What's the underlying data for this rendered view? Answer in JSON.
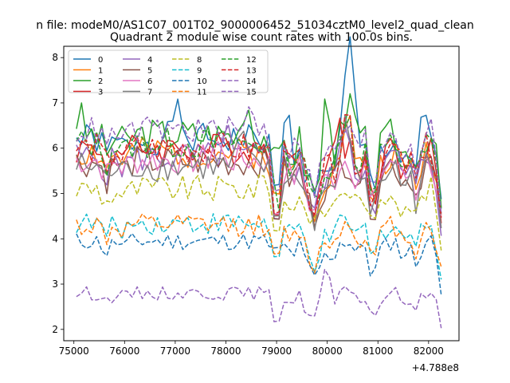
{
  "chart_data": {
    "type": "line",
    "suptitle": "n file: modeM0/AS1C07_001T02_9000006452_51034cztM0_level2_quad_clean",
    "title": "Quadrant 2 module wise count rates with 100.0s bins.",
    "xlabel": "",
    "ylabel": "",
    "x_offset_label": "+4.788e8",
    "xlim": [
      74800,
      82600
    ],
    "ylim": [
      1.75,
      8.25
    ],
    "x_ticks": [
      75000,
      76000,
      77000,
      78000,
      79000,
      80000,
      81000,
      82000
    ],
    "x_tick_labels": [
      "75000",
      "76000",
      "77000",
      "78000",
      "79000",
      "80000",
      "81000",
      "82000"
    ],
    "y_ticks": [
      2,
      3,
      4,
      5,
      6,
      7,
      8
    ],
    "y_tick_labels": [
      "2",
      "3",
      "4",
      "5",
      "6",
      "7",
      "8"
    ],
    "legend_position": "upper-left",
    "legend_columns": 4,
    "x_start": 75050,
    "x_step": 100,
    "series": [
      {
        "name": "0",
        "color": "#1f77b4",
        "dash": false,
        "base": 6.2,
        "amp": 0.35,
        "seed": 1,
        "peaks": [
          [
            77000,
            0.8
          ],
          [
            79200,
            1.0
          ],
          [
            80400,
            1.6
          ],
          [
            80500,
            1.5
          ],
          [
            81900,
            0.6
          ]
        ]
      },
      {
        "name": "1",
        "color": "#ff7f0e",
        "dash": false,
        "base": 5.9,
        "amp": 0.35,
        "seed": 2,
        "peaks": [
          [
            80400,
            1.0
          ]
        ]
      },
      {
        "name": "2",
        "color": "#2ca02c",
        "dash": false,
        "base": 6.3,
        "amp": 0.4,
        "seed": 3,
        "peaks": [
          [
            75100,
            0.5
          ],
          [
            78400,
            0.9
          ],
          [
            79000,
            0.8
          ],
          [
            80000,
            1.6
          ],
          [
            80500,
            1.0
          ]
        ]
      },
      {
        "name": "3",
        "color": "#d62728",
        "dash": false,
        "base": 6.0,
        "amp": 0.35,
        "seed": 4,
        "peaks": [
          [
            80200,
            1.0
          ]
        ]
      },
      {
        "name": "4",
        "color": "#9467bd",
        "dash": false,
        "base": 5.8,
        "amp": 0.35,
        "seed": 5,
        "peaks": [
          [
            78000,
            0.6
          ],
          [
            80300,
            0.9
          ]
        ]
      },
      {
        "name": "5",
        "color": "#8c564b",
        "dash": false,
        "base": 5.7,
        "amp": 0.35,
        "seed": 6,
        "peaks": []
      },
      {
        "name": "6",
        "color": "#e377c2",
        "dash": false,
        "base": 5.75,
        "amp": 0.35,
        "seed": 7,
        "peaks": [
          [
            77800,
            0.5
          ]
        ]
      },
      {
        "name": "7",
        "color": "#7f7f7f",
        "dash": false,
        "base": 5.6,
        "amp": 0.35,
        "seed": 8,
        "peaks": [
          [
            78300,
            0.8
          ],
          [
            80400,
            1.2
          ]
        ]
      },
      {
        "name": "8",
        "color": "#bcbd22",
        "dash": true,
        "base": 5.1,
        "amp": 0.3,
        "seed": 9,
        "peaks": [
          [
            78800,
            0.4
          ],
          [
            79700,
            0.5
          ]
        ]
      },
      {
        "name": "9",
        "color": "#17becf",
        "dash": true,
        "base": 4.35,
        "amp": 0.25,
        "seed": 10,
        "peaks": []
      },
      {
        "name": "10",
        "color": "#1f77b4",
        "dash": true,
        "base": 3.95,
        "amp": 0.2,
        "seed": 11,
        "peaks": [
          [
            79000,
            0.7
          ]
        ]
      },
      {
        "name": "11",
        "color": "#ff7f0e",
        "dash": true,
        "base": 4.3,
        "amp": 0.25,
        "seed": 12,
        "peaks": []
      },
      {
        "name": "12",
        "color": "#2ca02c",
        "dash": true,
        "base": 6.1,
        "amp": 0.35,
        "seed": 13,
        "peaks": [
          [
            80400,
            0.9
          ]
        ]
      },
      {
        "name": "13",
        "color": "#d62728",
        "dash": true,
        "base": 6.0,
        "amp": 0.35,
        "seed": 14,
        "peaks": [
          [
            80400,
            1.0
          ]
        ]
      },
      {
        "name": "14",
        "color": "#9467bd",
        "dash": true,
        "base": 2.8,
        "amp": 0.15,
        "seed": 15,
        "peaks": [
          [
            79900,
            0.4
          ],
          [
            80000,
            0.6
          ]
        ]
      },
      {
        "name": "15",
        "color": "#9467bd",
        "dash": true,
        "base": 6.4,
        "amp": 0.3,
        "seed": 16,
        "peaks": [
          [
            78500,
            0.6
          ]
        ]
      }
    ],
    "dips": [
      [
        75650,
        0.35
      ],
      [
        76000,
        0.2
      ],
      [
        79000,
        1.35
      ],
      [
        79300,
        0.45
      ],
      [
        79600,
        0.7
      ],
      [
        79750,
        1.0
      ],
      [
        79900,
        0.55
      ],
      [
        80100,
        0.5
      ],
      [
        80600,
        0.4
      ],
      [
        80900,
        1.15
      ],
      [
        81100,
        0.2
      ],
      [
        81500,
        0.45
      ],
      [
        81750,
        0.7
      ],
      [
        82250,
        1.4
      ]
    ]
  }
}
